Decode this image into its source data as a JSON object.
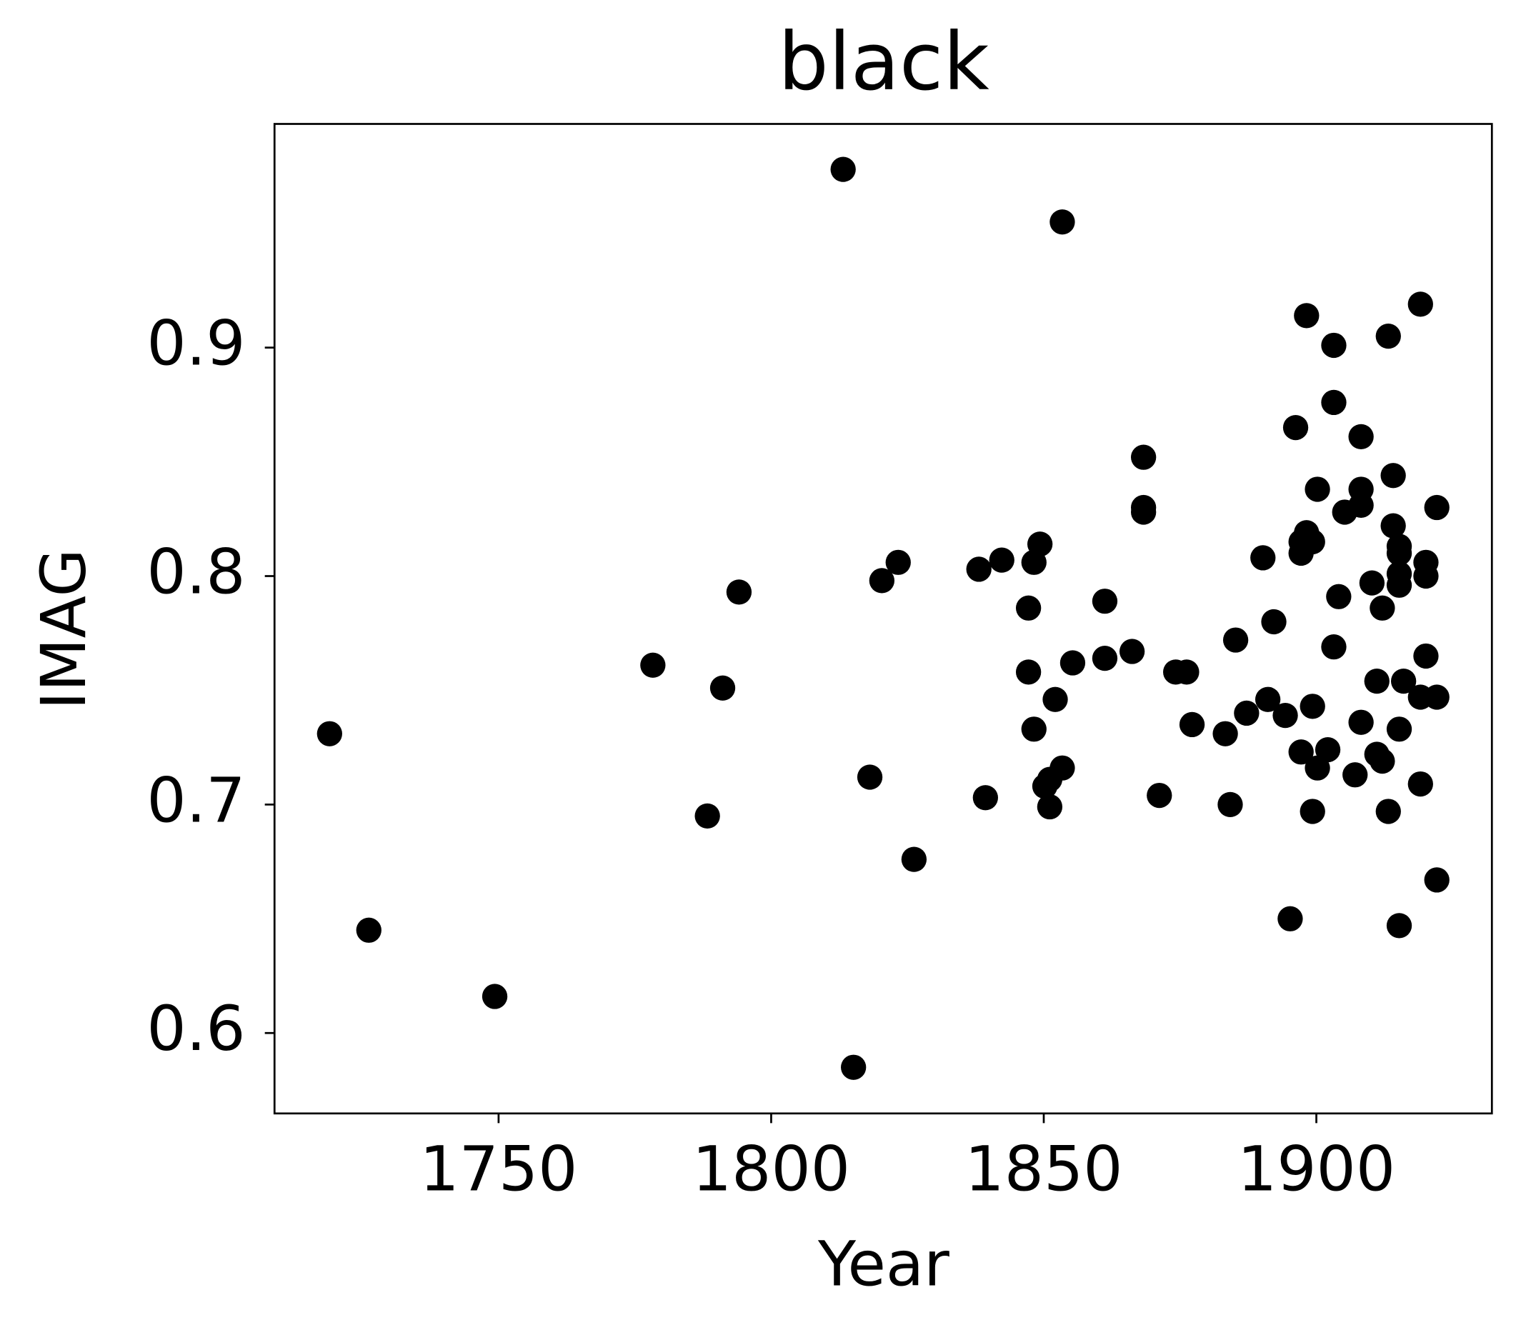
{
  "chart_data": {
    "type": "scatter",
    "title": "black",
    "x_label": "Year",
    "y_label": "IMAG",
    "color": "#000000",
    "xlim": [
      1708.9,
      1932.2
    ],
    "ylim": [
      0.5648,
      0.9979
    ],
    "xticks": [
      1750,
      1800,
      1850,
      1900
    ],
    "yticks": [
      0.6,
      0.7,
      0.8,
      0.9
    ],
    "grid": false,
    "x": [
      1719.0,
      1726.2,
      1749.3,
      1778.3,
      1788.3,
      1791.1,
      1794.1,
      1813.2,
      1815.1,
      1818.1,
      1820.3,
      1823.3,
      1826.2,
      1838.1,
      1839.3,
      1842.3,
      1847.2,
      1847.2,
      1848.2,
      1848.2,
      1849.3,
      1850.2,
      1851.1,
      1851.1,
      1852.1,
      1853.4,
      1853.4,
      1855.3,
      1861.2,
      1861.2,
      1866.2,
      1868.3,
      1868.3,
      1868.3,
      1871.2,
      1874.2,
      1876.2,
      1877.2,
      1883.3,
      1884.2,
      1885.2,
      1887.2,
      1890.2,
      1891.1,
      1892.2,
      1894.3,
      1895.2,
      1896.2,
      1897.2,
      1897.2,
      1897.2,
      1898.2,
      1898.2,
      1899.3,
      1899.3,
      1899.3,
      1900.2,
      1900.2,
      1902.1,
      1903.2,
      1903.2,
      1903.2,
      1904.1,
      1905.2,
      1907.1,
      1908.2,
      1908.2,
      1908.2,
      1908.2,
      1910.2,
      1911.1,
      1911.1,
      1912.1,
      1912.1,
      1913.2,
      1913.2,
      1914.1,
      1914.1,
      1915.2,
      1915.2,
      1915.2,
      1915.2,
      1915.2,
      1915.2,
      1916.0,
      1919.1,
      1919.1,
      1919.1,
      1920.1,
      1920.1,
      1920.1,
      1922.1,
      1922.1,
      1922.1
    ],
    "values": [
      0.731,
      0.645,
      0.616,
      0.761,
      0.695,
      0.751,
      0.793,
      0.978,
      0.585,
      0.712,
      0.798,
      0.806,
      0.676,
      0.803,
      0.703,
      0.807,
      0.786,
      0.758,
      0.733,
      0.806,
      0.814,
      0.708,
      0.711,
      0.699,
      0.746,
      0.955,
      0.716,
      0.762,
      0.789,
      0.764,
      0.767,
      0.852,
      0.83,
      0.828,
      0.704,
      0.758,
      0.758,
      0.735,
      0.731,
      0.7,
      0.772,
      0.74,
      0.808,
      0.746,
      0.78,
      0.739,
      0.65,
      0.865,
      0.723,
      0.81,
      0.815,
      0.914,
      0.819,
      0.815,
      0.743,
      0.697,
      0.716,
      0.838,
      0.724,
      0.901,
      0.876,
      0.769,
      0.791,
      0.828,
      0.713,
      0.861,
      0.838,
      0.831,
      0.736,
      0.797,
      0.754,
      0.722,
      0.719,
      0.786,
      0.905,
      0.697,
      0.844,
      0.822,
      0.813,
      0.81,
      0.801,
      0.796,
      0.733,
      0.647,
      0.754,
      0.919,
      0.747,
      0.709,
      0.806,
      0.8,
      0.765,
      0.83,
      0.747,
      0.667
    ]
  }
}
